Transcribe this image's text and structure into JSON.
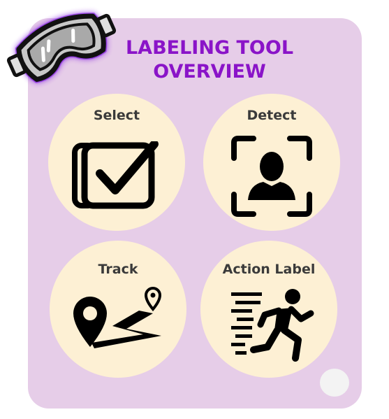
{
  "title": {
    "line1": "LABELING TOOL",
    "line2": "OVERVIEW"
  },
  "tiles": [
    {
      "label": "Select",
      "icon": "checkbox-icon"
    },
    {
      "label": "Detect",
      "icon": "face-detect-icon"
    },
    {
      "label": "Track",
      "icon": "track-path-icon"
    },
    {
      "label": "Action Label",
      "icon": "running-person-icon"
    }
  ],
  "colors": {
    "card_background": "#e6cde8",
    "title": "#8a14c8",
    "tile_background": "#fdf0d4",
    "goggles_glow": "#8a2be2"
  }
}
